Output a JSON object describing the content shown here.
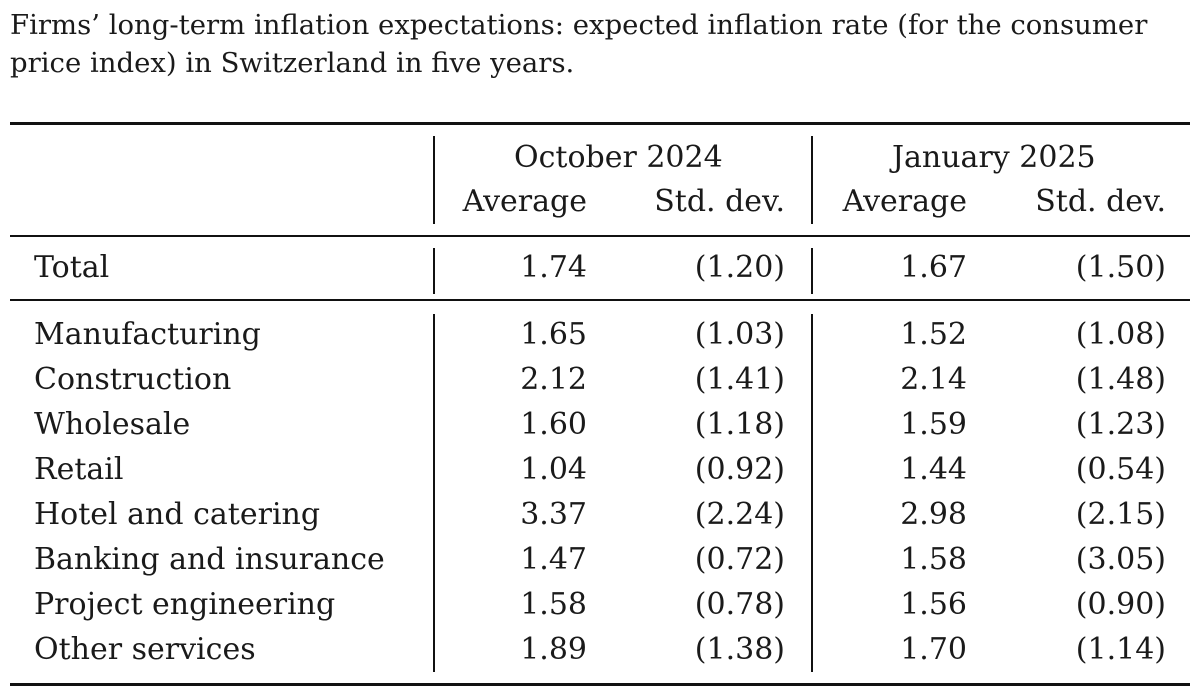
{
  "caption": "Firms’ long-term inflation expectations: expected inflation rate (for the consumer price index) in Switzerland in five years.",
  "table": {
    "groups": [
      "October 2024",
      "January 2025"
    ],
    "subheaders": [
      "Average",
      "Std. dev.",
      "Average",
      "Std. dev."
    ],
    "total": {
      "label": "Total",
      "oct_avg": "1.74",
      "oct_sd": "(1.20)",
      "jan_avg": "1.67",
      "jan_sd": "(1.50)"
    },
    "rows": [
      {
        "label": "Manufacturing",
        "oct_avg": "1.65",
        "oct_sd": "(1.03)",
        "jan_avg": "1.52",
        "jan_sd": "(1.08)"
      },
      {
        "label": "Construction",
        "oct_avg": "2.12",
        "oct_sd": "(1.41)",
        "jan_avg": "2.14",
        "jan_sd": "(1.48)"
      },
      {
        "label": "Wholesale",
        "oct_avg": "1.60",
        "oct_sd": "(1.18)",
        "jan_avg": "1.59",
        "jan_sd": "(1.23)"
      },
      {
        "label": "Retail",
        "oct_avg": "1.04",
        "oct_sd": "(0.92)",
        "jan_avg": "1.44",
        "jan_sd": "(0.54)"
      },
      {
        "label": "Hotel and catering",
        "oct_avg": "3.37",
        "oct_sd": "(2.24)",
        "jan_avg": "2.98",
        "jan_sd": "(2.15)"
      },
      {
        "label": "Banking and insurance",
        "oct_avg": "1.47",
        "oct_sd": "(0.72)",
        "jan_avg": "1.58",
        "jan_sd": "(3.05)"
      },
      {
        "label": "Project engineering",
        "oct_avg": "1.58",
        "oct_sd": "(0.78)",
        "jan_avg": "1.56",
        "jan_sd": "(0.90)"
      },
      {
        "label": "Other services",
        "oct_avg": "1.89",
        "oct_sd": "(1.38)",
        "jan_avg": "1.70",
        "jan_sd": "(1.14)"
      }
    ]
  }
}
